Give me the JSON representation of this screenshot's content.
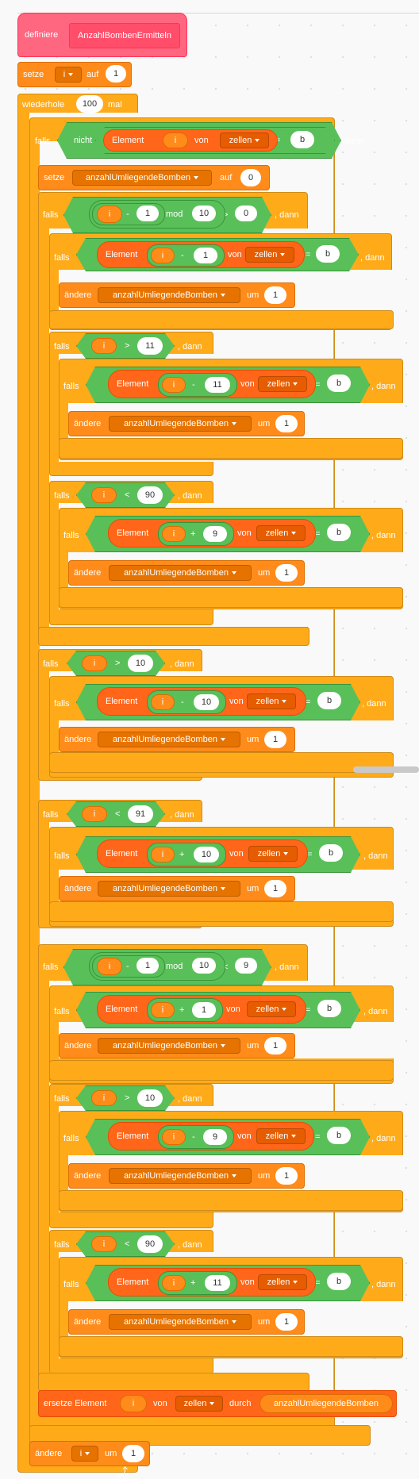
{
  "define": {
    "label": "definiere",
    "name": "AnzahlBombenErmitteln"
  },
  "set_i": {
    "label": "setze",
    "var": "i",
    "to": "auf",
    "value": "1"
  },
  "repeat": {
    "label": "wiederhole",
    "count": "100",
    "suffix": "mal"
  },
  "kw": {
    "if": "falls",
    "then": ", dann",
    "not": "nicht",
    "element": "Element",
    "of": "von",
    "change": "ändere",
    "by": "um",
    "set": "setze",
    "to": "auf",
    "mod": "mod",
    "replace": "ersetze Element",
    "with": "durch"
  },
  "names": {
    "i": "i",
    "list": "zellen",
    "counter": "anzahlUmliegendeBomben",
    "b": "b"
  },
  "ops": {
    "eq": "=",
    "gt": ">",
    "lt": "<",
    "minus": "-",
    "plus": "+"
  },
  "nums": {
    "n0": "0",
    "n1": "1",
    "n9": "9",
    "n10": "10",
    "n11": "11",
    "n90": "90",
    "n91": "91"
  },
  "return_arrow": "⤴"
}
